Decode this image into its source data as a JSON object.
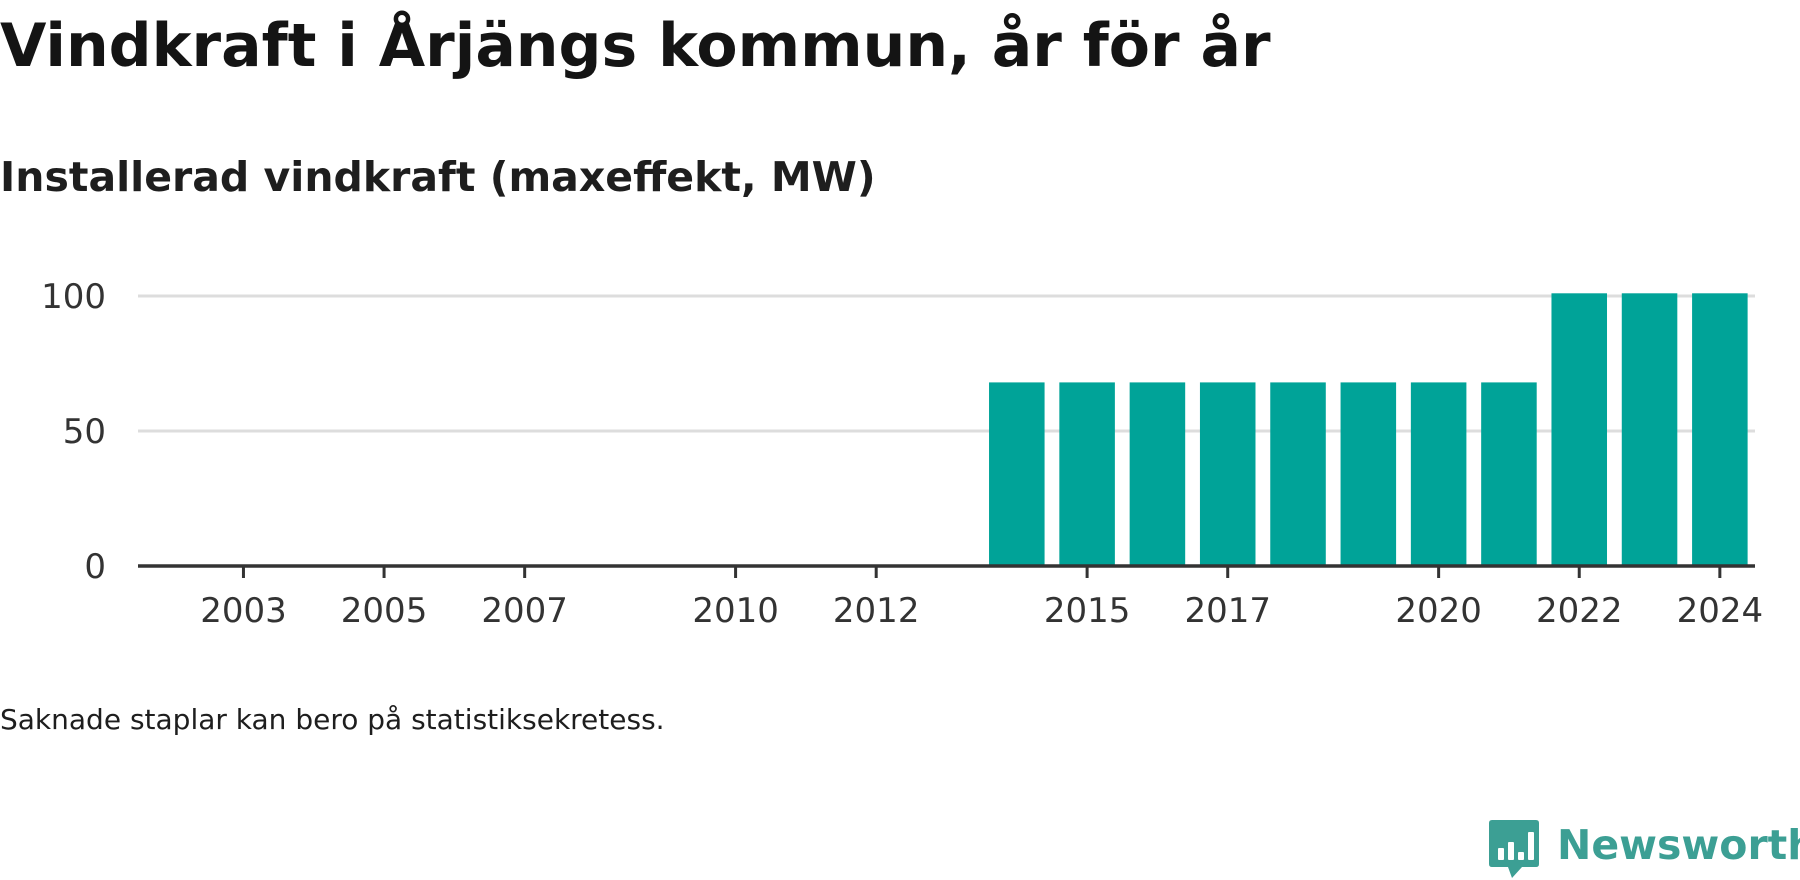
{
  "colors": {
    "bar": "#00a398",
    "grid": "#dddddd",
    "axis": "#333333",
    "text": "#333333",
    "brand": "#3c9f94"
  },
  "logo": {
    "text": "Newsworthy",
    "icon": "bar-chart-bubble-icon"
  },
  "note": "Saknade staplar kan bero på statistiksekretess.",
  "chart_data": {
    "type": "bar",
    "title": "Vindkraft i Årjängs kommun, år för år",
    "subtitle": "Installerad vindkraft (maxeffekt, MW)",
    "xlabel": "",
    "ylabel": "",
    "categories": [
      "2002",
      "2003",
      "2004",
      "2005",
      "2006",
      "2007",
      "2008",
      "2009",
      "2010",
      "2011",
      "2012",
      "2013",
      "2014",
      "2015",
      "2016",
      "2017",
      "2018",
      "2019",
      "2020",
      "2021",
      "2022",
      "2023",
      "2024"
    ],
    "values": [
      0,
      0,
      0,
      0,
      0,
      0,
      0,
      0,
      0,
      0,
      0,
      0,
      68,
      68,
      68,
      68,
      68,
      68,
      68,
      68,
      101,
      101,
      101
    ],
    "x_ticks": [
      "2003",
      "2005",
      "2007",
      "2010",
      "2012",
      "2015",
      "2017",
      "2020",
      "2022",
      "2024"
    ],
    "y_ticks": [
      0,
      50,
      100
    ],
    "ylim": [
      0,
      115
    ],
    "grid": true,
    "legend": "none"
  }
}
